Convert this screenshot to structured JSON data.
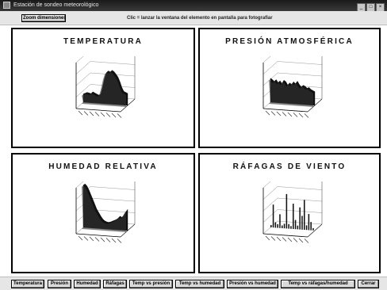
{
  "window": {
    "title": "Estación de sondeo meteorológico"
  },
  "topbar": {
    "button_label": "Zoom dimensiones",
    "hint": "Clic = lanzar la ventana del elemento en pantalla para fotografiar"
  },
  "panels": [
    {
      "title": "TEMPERATURA"
    },
    {
      "title": "PRESIÓN ATMOSFÉRICA"
    },
    {
      "title": "HUMEDAD RELATIVA"
    },
    {
      "title": "RÁFAGAS DE VIENTO"
    }
  ],
  "chart_data": [
    {
      "type": "area",
      "title": "TEMPERATURA",
      "values": [
        0.18,
        0.2,
        0.22,
        0.21,
        0.2,
        0.24,
        0.22,
        0.2,
        0.18,
        0.2,
        0.35,
        0.55,
        0.68,
        0.72,
        0.7,
        0.74,
        0.71,
        0.66,
        0.6,
        0.5,
        0.38,
        0.3,
        0.28,
        0.26
      ],
      "ylim": [
        0,
        1
      ],
      "grid": true
    },
    {
      "type": "area",
      "title": "PRESIÓN ATMOSFÉRICA",
      "values": [
        0.52,
        0.5,
        0.46,
        0.5,
        0.44,
        0.48,
        0.42,
        0.5,
        0.47,
        0.4,
        0.45,
        0.42,
        0.48,
        0.44,
        0.5,
        0.43,
        0.38,
        0.42,
        0.4,
        0.36,
        0.38,
        0.34,
        0.32,
        0.3
      ],
      "ylim": [
        0,
        1
      ],
      "grid": true
    },
    {
      "type": "area",
      "title": "HUMEDAD RELATIVA",
      "values": [
        0.92,
        0.95,
        0.9,
        0.82,
        0.72,
        0.62,
        0.52,
        0.42,
        0.35,
        0.28,
        0.22,
        0.18,
        0.16,
        0.15,
        0.16,
        0.18,
        0.2,
        0.22,
        0.25,
        0.3,
        0.28,
        0.32,
        0.4,
        0.46
      ],
      "ylim": [
        0,
        1
      ],
      "grid": true
    },
    {
      "type": "bar",
      "title": "RÁFAGAS DE VIENTO",
      "values": [
        0.05,
        0.5,
        0.12,
        0.08,
        0.3,
        0.06,
        0.1,
        0.75,
        0.1,
        0.06,
        0.55,
        0.2,
        0.08,
        0.48,
        0.3,
        0.65,
        0.1,
        0.35,
        0.18,
        0.05
      ],
      "ylim": [
        0,
        1
      ],
      "grid": true
    }
  ],
  "bottombar": {
    "buttons": [
      "Temperatura",
      "Presión",
      "Humedad",
      "Ráfagas",
      "Temp vs presión",
      "Temp vs humedad",
      "Presión vs humedad",
      "Temp vs ráfagas/humedad",
      "Cerrar"
    ]
  }
}
